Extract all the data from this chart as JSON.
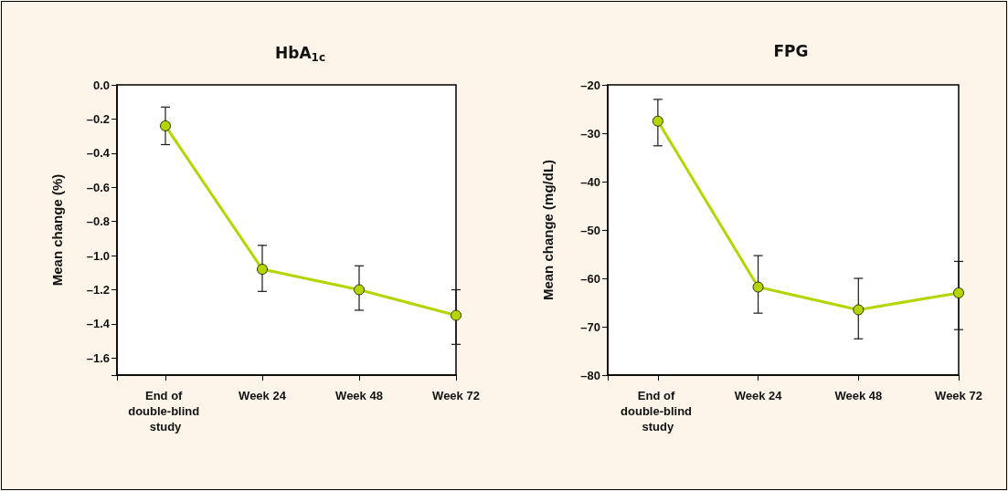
{
  "chart_data": [
    {
      "type": "line",
      "title": "HbA$_{1c}$",
      "ylabel": "Mean change (%)",
      "categories": [
        "End of double-blind study",
        "Week 24",
        "Week 48",
        "Week 72"
      ],
      "values": [
        -0.24,
        -1.08,
        -1.2,
        -1.35
      ],
      "errors": [
        [
          -0.35,
          -0.13
        ],
        [
          -1.21,
          -0.94
        ],
        [
          -1.32,
          -1.06
        ],
        [
          -1.52,
          -1.2
        ]
      ],
      "color": "#b5d400",
      "marker": "circle",
      "grid": false,
      "ylim": [
        -1.7,
        0
      ],
      "yticks": [
        {
          "value": 0,
          "label": "0.0"
        },
        {
          "value": -0.2,
          "label": "–0.2"
        },
        {
          "value": -0.4,
          "label": "–0.4"
        },
        {
          "value": -0.6,
          "label": "–0.6"
        },
        {
          "value": -0.8,
          "label": "–0.8"
        },
        {
          "value": -1.0,
          "label": "–1.0"
        },
        {
          "value": -1.2,
          "label": "–1.2"
        },
        {
          "value": -1.4,
          "label": "–1.4"
        },
        {
          "value": -1.6,
          "label": "–1.6"
        }
      ]
    },
    {
      "type": "line",
      "title": "FPG",
      "ylabel": "Mean change (mg/dL)",
      "categories": [
        "End of double-blind study",
        "Week 24",
        "Week 48",
        "Week 72"
      ],
      "values": [
        -27.5,
        -61.8,
        -66.5,
        -63
      ],
      "errors": [
        [
          -32.6,
          -23
        ],
        [
          -67.2,
          -55.3
        ],
        [
          -72.5,
          -60
        ],
        [
          -70.6,
          -56.5
        ]
      ],
      "color": "#b5d400",
      "marker": "circle",
      "grid": false,
      "ylim": [
        -80,
        -20
      ],
      "yticks": [
        {
          "value": -20,
          "label": "–20"
        },
        {
          "value": -30,
          "label": "–30"
        },
        {
          "value": -40,
          "label": "–40"
        },
        {
          "value": -50,
          "label": "–50"
        },
        {
          "value": -60,
          "label": "–60"
        },
        {
          "value": -70,
          "label": "–70"
        },
        {
          "value": -80,
          "label": "–80"
        }
      ]
    }
  ]
}
